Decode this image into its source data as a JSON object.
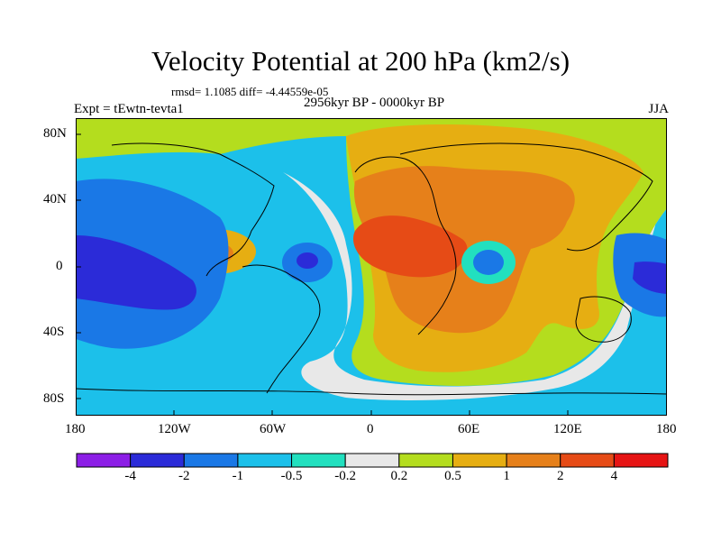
{
  "title": "Velocity Potential at 200 hPa (km2/s)",
  "stats_line": "rmsd= 1.1085 diff= -4.44559e-05",
  "period": "2956kyr BP - 0000kyr BP",
  "experiment": "Expt = tEwtn-tevta1",
  "season": "JJA",
  "lat_ticks": [
    "80N",
    "40N",
    "0",
    "40S",
    "80S"
  ],
  "lon_ticks": [
    "180",
    "120W",
    "60W",
    "0",
    "60E",
    "120E",
    "180"
  ],
  "colorbar": {
    "labels": [
      "-4",
      "-2",
      "-1",
      "-0.5",
      "-0.2",
      "0.2",
      "0.5",
      "1",
      "2",
      "4"
    ],
    "colors": [
      "#8c1ee6",
      "#2b2bd8",
      "#1a78e6",
      "#1cc0ea",
      "#22e0bf",
      "#e8e8e8",
      "#b4dd1e",
      "#e6ae12",
      "#e6801a",
      "#e64b16",
      "#e61414"
    ]
  }
}
